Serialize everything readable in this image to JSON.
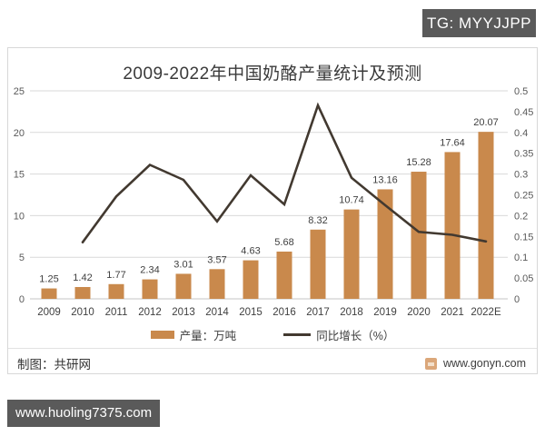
{
  "overlay": {
    "tg_badge": "TG: MYYJJPP",
    "watermark": "www.huoling7375.com"
  },
  "chart": {
    "title": "2009-2022年中国奶酪产量统计及预测",
    "legend": [
      {
        "label": "产量：万吨",
        "type": "bar",
        "color": "#c9894c"
      },
      {
        "label": "同比增长（%）",
        "type": "line",
        "color": "#423930"
      }
    ],
    "footer": {
      "left": "制图：共研网",
      "right": "www.gonyn.com"
    }
  },
  "chart_data": {
    "type": "bar+line",
    "title": "2009-2022年中国奶酪产量统计及预测",
    "categories": [
      "2009",
      "2010",
      "2011",
      "2012",
      "2013",
      "2014",
      "2015",
      "2016",
      "2017",
      "2018",
      "2019",
      "2020",
      "2021",
      "2022E"
    ],
    "series": [
      {
        "name": "产量：万吨",
        "type": "bar",
        "axis": "left",
        "color": "#c9894c",
        "values": [
          1.25,
          1.42,
          1.77,
          2.34,
          3.01,
          3.57,
          4.63,
          5.68,
          8.32,
          10.74,
          13.16,
          15.28,
          17.64,
          20.07
        ]
      },
      {
        "name": "同比增长（%）",
        "type": "line",
        "axis": "right",
        "color": "#423930",
        "values": [
          null,
          0.136,
          0.246,
          0.322,
          0.286,
          0.186,
          0.297,
          0.227,
          0.465,
          0.291,
          0.225,
          0.161,
          0.154,
          0.138
        ]
      }
    ],
    "left_axis": {
      "min": 0,
      "max": 25,
      "step": 5
    },
    "right_axis": {
      "min": 0,
      "max": 0.5,
      "step": 0.05
    },
    "grid": true,
    "data_labels": true,
    "legend_position": "bottom",
    "colors": {
      "grid": "#d9d9d9",
      "axis_text": "#595959",
      "label_text": "#404040"
    }
  }
}
